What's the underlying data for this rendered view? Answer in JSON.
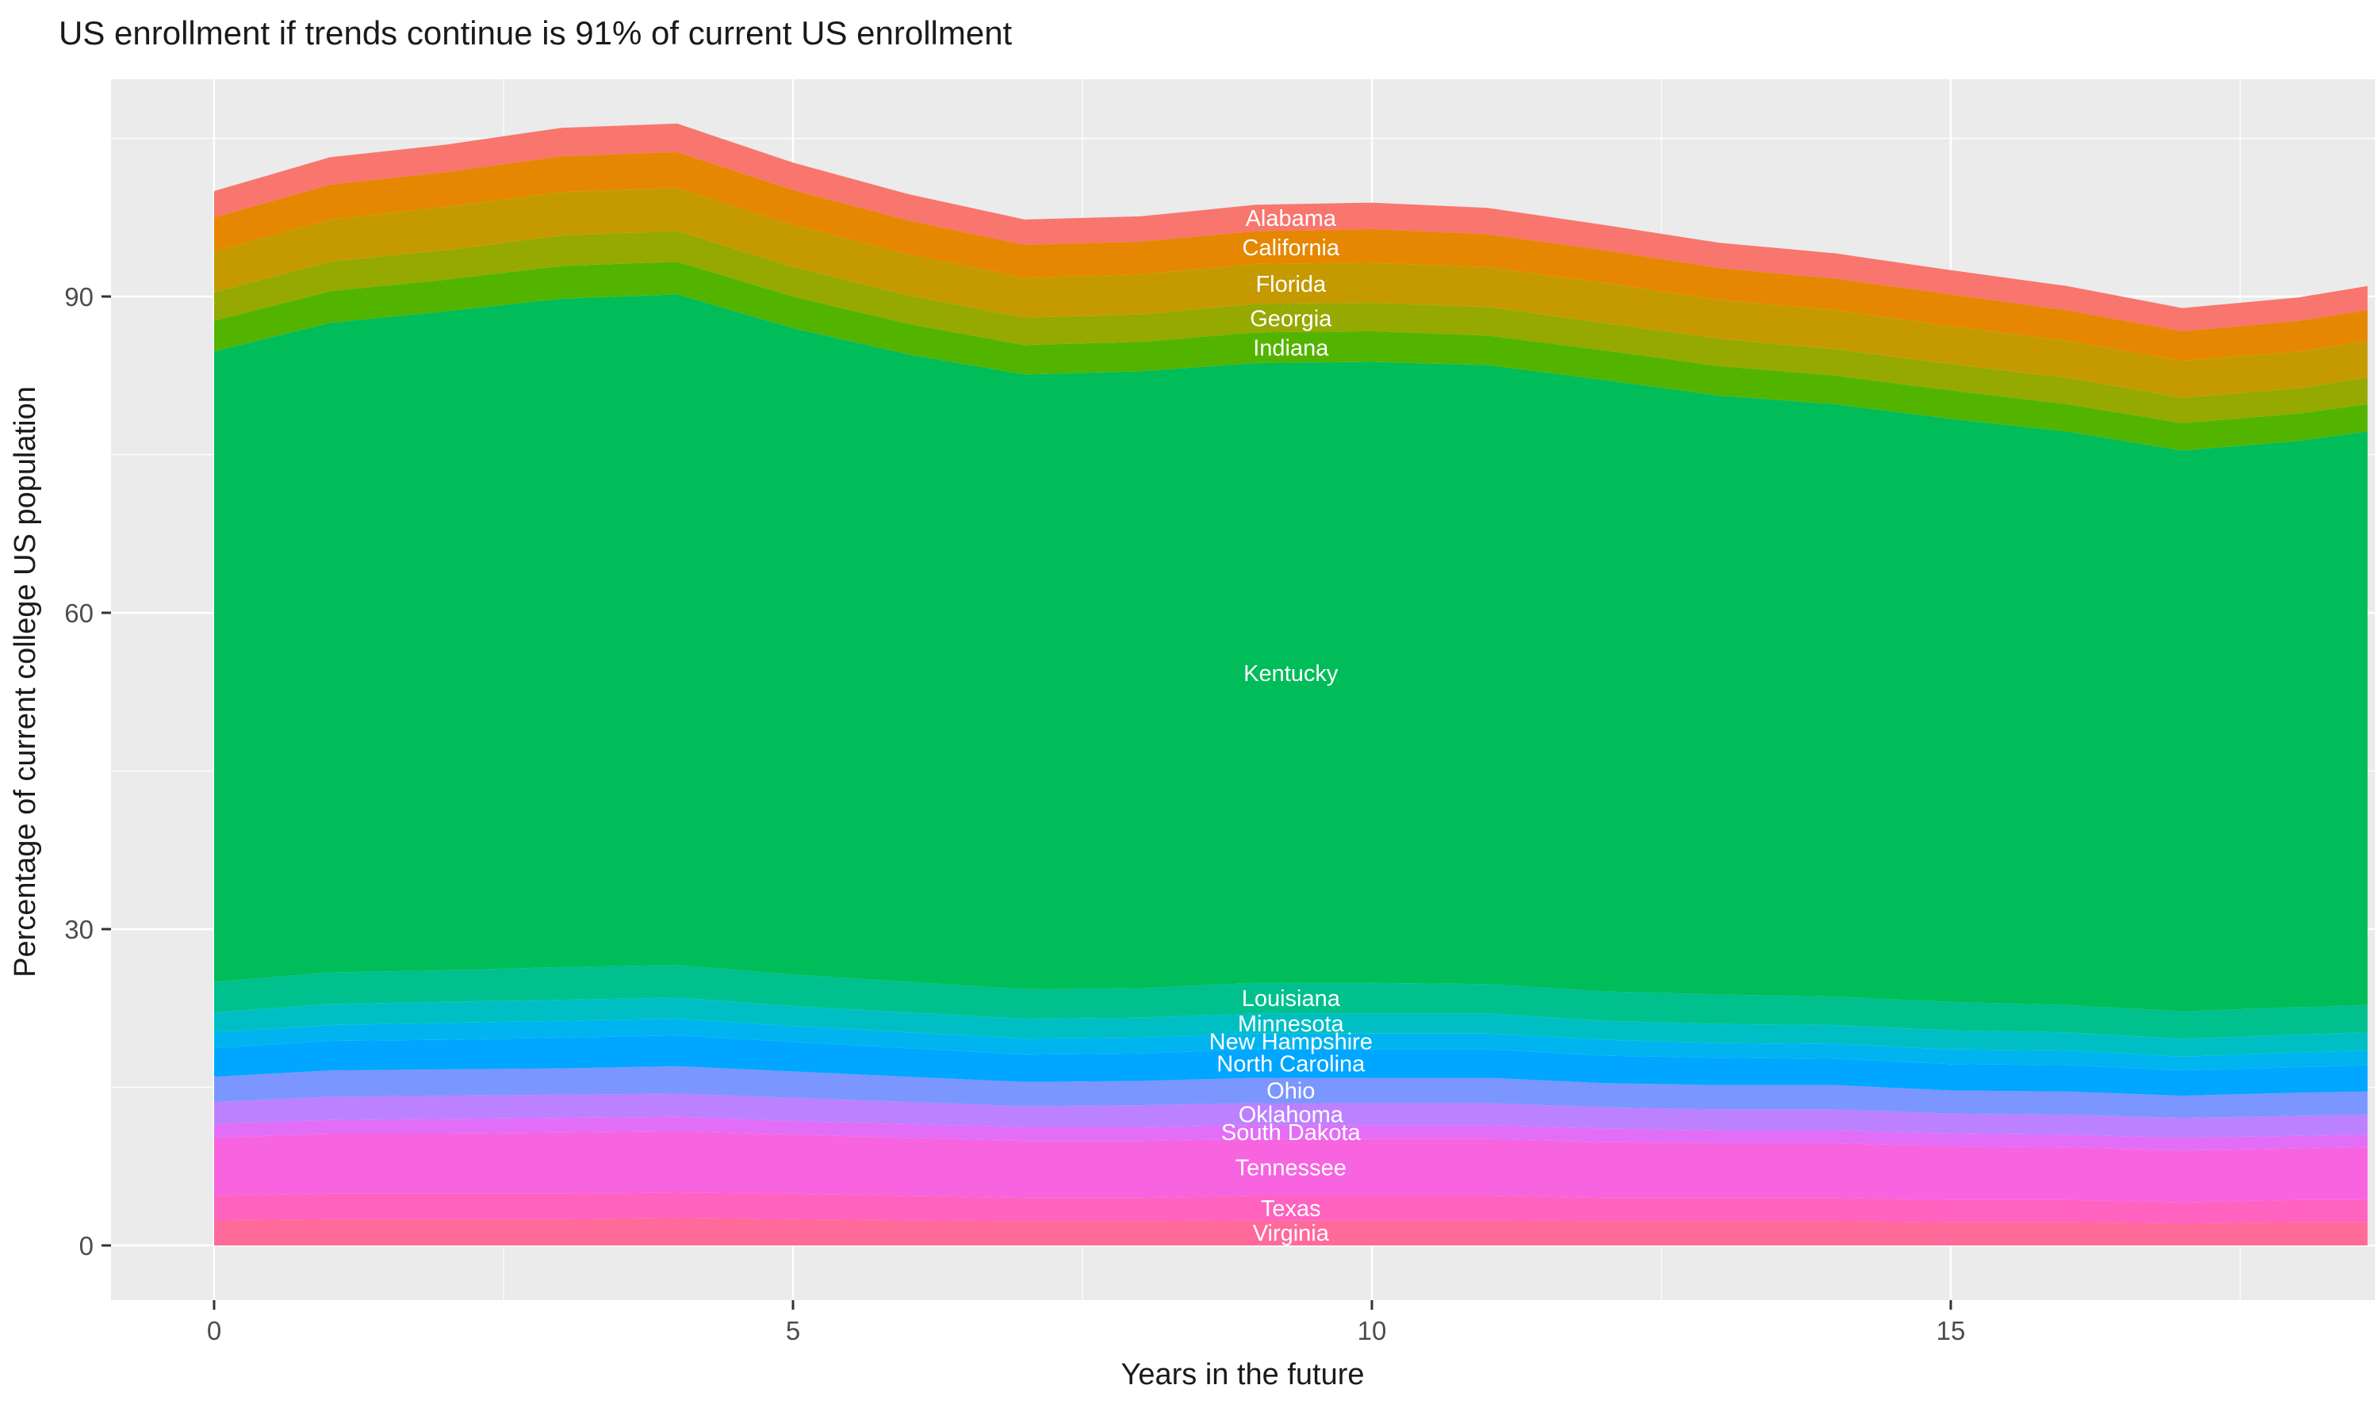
{
  "chart_data": {
    "type": "area",
    "stacked": true,
    "title": "US enrollment if trends continue is 91% of current US enrollment",
    "xlabel": "Years in the future",
    "ylabel": "Percentage of current college US population",
    "legend_position": "none",
    "panel_bg": "#EBEBEB",
    "grid_color": "#FFFFFF",
    "label_color": "#FFFFFF",
    "label_x": 9.3,
    "xticks": [
      0,
      5,
      10,
      15
    ],
    "yticks": [
      0,
      30,
      60,
      90
    ],
    "x_minor": [
      2.5,
      7.5,
      12.5,
      17.5
    ],
    "y_minor": [
      15,
      45,
      75,
      105
    ],
    "xlim": [
      0,
      18.6
    ],
    "ylim": [
      0,
      110
    ],
    "total_start_pct": 100,
    "total_end_pct": 91,
    "x": [
      0,
      1,
      2,
      3,
      4,
      5,
      6,
      7,
      8,
      9,
      10,
      11,
      12,
      13,
      14,
      15,
      16,
      17,
      18,
      18.6
    ],
    "stack_order": "bottom-to-top",
    "series": [
      {
        "name": "Virginia",
        "color": "#FF6A9A",
        "values": [
          2.4,
          2.5,
          2.5,
          2.5,
          2.6,
          2.5,
          2.4,
          2.3,
          2.3,
          2.4,
          2.4,
          2.4,
          2.3,
          2.3,
          2.3,
          2.2,
          2.2,
          2.1,
          2.2,
          2.2
        ]
      },
      {
        "name": "Texas",
        "color": "#FF62BF",
        "values": [
          2.3,
          2.4,
          2.4,
          2.4,
          2.4,
          2.4,
          2.3,
          2.2,
          2.2,
          2.3,
          2.3,
          2.3,
          2.2,
          2.2,
          2.2,
          2.1,
          2.1,
          2.0,
          2.1,
          2.1
        ]
      },
      {
        "name": "Tennessee",
        "color": "#F863DF",
        "values": [
          5.5,
          5.7,
          5.7,
          5.8,
          5.8,
          5.6,
          5.5,
          5.4,
          5.4,
          5.4,
          5.4,
          5.4,
          5.3,
          5.2,
          5.2,
          5.1,
          5.0,
          4.9,
          4.9,
          5.0
        ]
      },
      {
        "name": "South Dakota",
        "color": "#E26EF7",
        "values": [
          1.3,
          1.3,
          1.4,
          1.4,
          1.4,
          1.3,
          1.3,
          1.3,
          1.3,
          1.3,
          1.3,
          1.3,
          1.3,
          1.2,
          1.2,
          1.2,
          1.2,
          1.2,
          1.2,
          1.2
        ]
      },
      {
        "name": "Oklahoma",
        "color": "#BC81FF",
        "values": [
          2.1,
          2.2,
          2.2,
          2.2,
          2.2,
          2.2,
          2.1,
          2.0,
          2.1,
          2.1,
          2.1,
          2.1,
          2.0,
          2.0,
          2.0,
          1.9,
          1.9,
          1.9,
          1.9,
          1.9
        ]
      },
      {
        "name": "Ohio",
        "color": "#7C96FF",
        "values": [
          2.4,
          2.5,
          2.5,
          2.5,
          2.6,
          2.5,
          2.4,
          2.3,
          2.3,
          2.4,
          2.4,
          2.4,
          2.3,
          2.3,
          2.3,
          2.2,
          2.2,
          2.1,
          2.2,
          2.2
        ]
      },
      {
        "name": "North Carolina",
        "color": "#00A6FF",
        "values": [
          2.7,
          2.8,
          2.8,
          2.9,
          2.9,
          2.8,
          2.7,
          2.6,
          2.6,
          2.7,
          2.7,
          2.7,
          2.6,
          2.6,
          2.5,
          2.5,
          2.5,
          2.4,
          2.4,
          2.5
        ]
      },
      {
        "name": "New Hampshire",
        "color": "#00B4EF",
        "values": [
          1.5,
          1.5,
          1.6,
          1.6,
          1.6,
          1.5,
          1.5,
          1.5,
          1.5,
          1.5,
          1.5,
          1.5,
          1.5,
          1.4,
          1.4,
          1.4,
          1.4,
          1.3,
          1.4,
          1.4
        ]
      },
      {
        "name": "Minnesota",
        "color": "#00BFC4",
        "values": [
          1.9,
          2.0,
          2.0,
          2.0,
          2.0,
          1.9,
          1.9,
          1.9,
          1.9,
          1.9,
          1.9,
          1.9,
          1.8,
          1.8,
          1.8,
          1.8,
          1.7,
          1.7,
          1.7,
          1.7
        ]
      },
      {
        "name": "Louisiana",
        "color": "#00C08E",
        "values": [
          2.9,
          3.0,
          3.0,
          3.1,
          3.1,
          3.0,
          2.9,
          2.8,
          2.8,
          2.9,
          2.9,
          2.8,
          2.8,
          2.8,
          2.7,
          2.7,
          2.6,
          2.6,
          2.6,
          2.6
        ]
      },
      {
        "name": "Kentucky",
        "color": "#00BC59",
        "values": [
          59.8,
          61.6,
          62.5,
          63.4,
          63.6,
          61.3,
          59.5,
          58.3,
          58.5,
          58.8,
          58.9,
          58.7,
          58.0,
          56.8,
          56.2,
          55.3,
          54.4,
          53.2,
          53.7,
          54.4
        ]
      },
      {
        "name": "Indiana",
        "color": "#53B400",
        "values": [
          2.9,
          3.0,
          3.0,
          3.1,
          3.1,
          3.0,
          2.9,
          2.8,
          2.8,
          2.9,
          2.9,
          2.8,
          2.8,
          2.8,
          2.7,
          2.7,
          2.6,
          2.6,
          2.6,
          2.6
        ]
      },
      {
        "name": "Georgia",
        "color": "#95A900",
        "values": [
          2.7,
          2.8,
          2.8,
          2.9,
          2.9,
          2.8,
          2.7,
          2.6,
          2.6,
          2.7,
          2.7,
          2.7,
          2.6,
          2.6,
          2.5,
          2.5,
          2.5,
          2.4,
          2.4,
          2.5
        ]
      },
      {
        "name": "Florida",
        "color": "#C49A00",
        "values": [
          3.9,
          4.0,
          4.1,
          4.1,
          4.1,
          4.0,
          3.9,
          3.8,
          3.8,
          3.8,
          3.8,
          3.8,
          3.8,
          3.7,
          3.7,
          3.6,
          3.5,
          3.5,
          3.5,
          3.5
        ]
      },
      {
        "name": "California",
        "color": "#E58700",
        "values": [
          3.2,
          3.3,
          3.3,
          3.4,
          3.4,
          3.3,
          3.2,
          3.1,
          3.1,
          3.1,
          3.2,
          3.1,
          3.1,
          3.0,
          3.0,
          3.0,
          2.9,
          2.8,
          2.9,
          2.9
        ]
      },
      {
        "name": "Alabama",
        "color": "#F8766D",
        "values": [
          2.5,
          2.6,
          2.6,
          2.7,
          2.7,
          2.6,
          2.5,
          2.4,
          2.4,
          2.5,
          2.5,
          2.5,
          2.4,
          2.4,
          2.4,
          2.3,
          2.3,
          2.2,
          2.2,
          2.3
        ]
      }
    ]
  }
}
